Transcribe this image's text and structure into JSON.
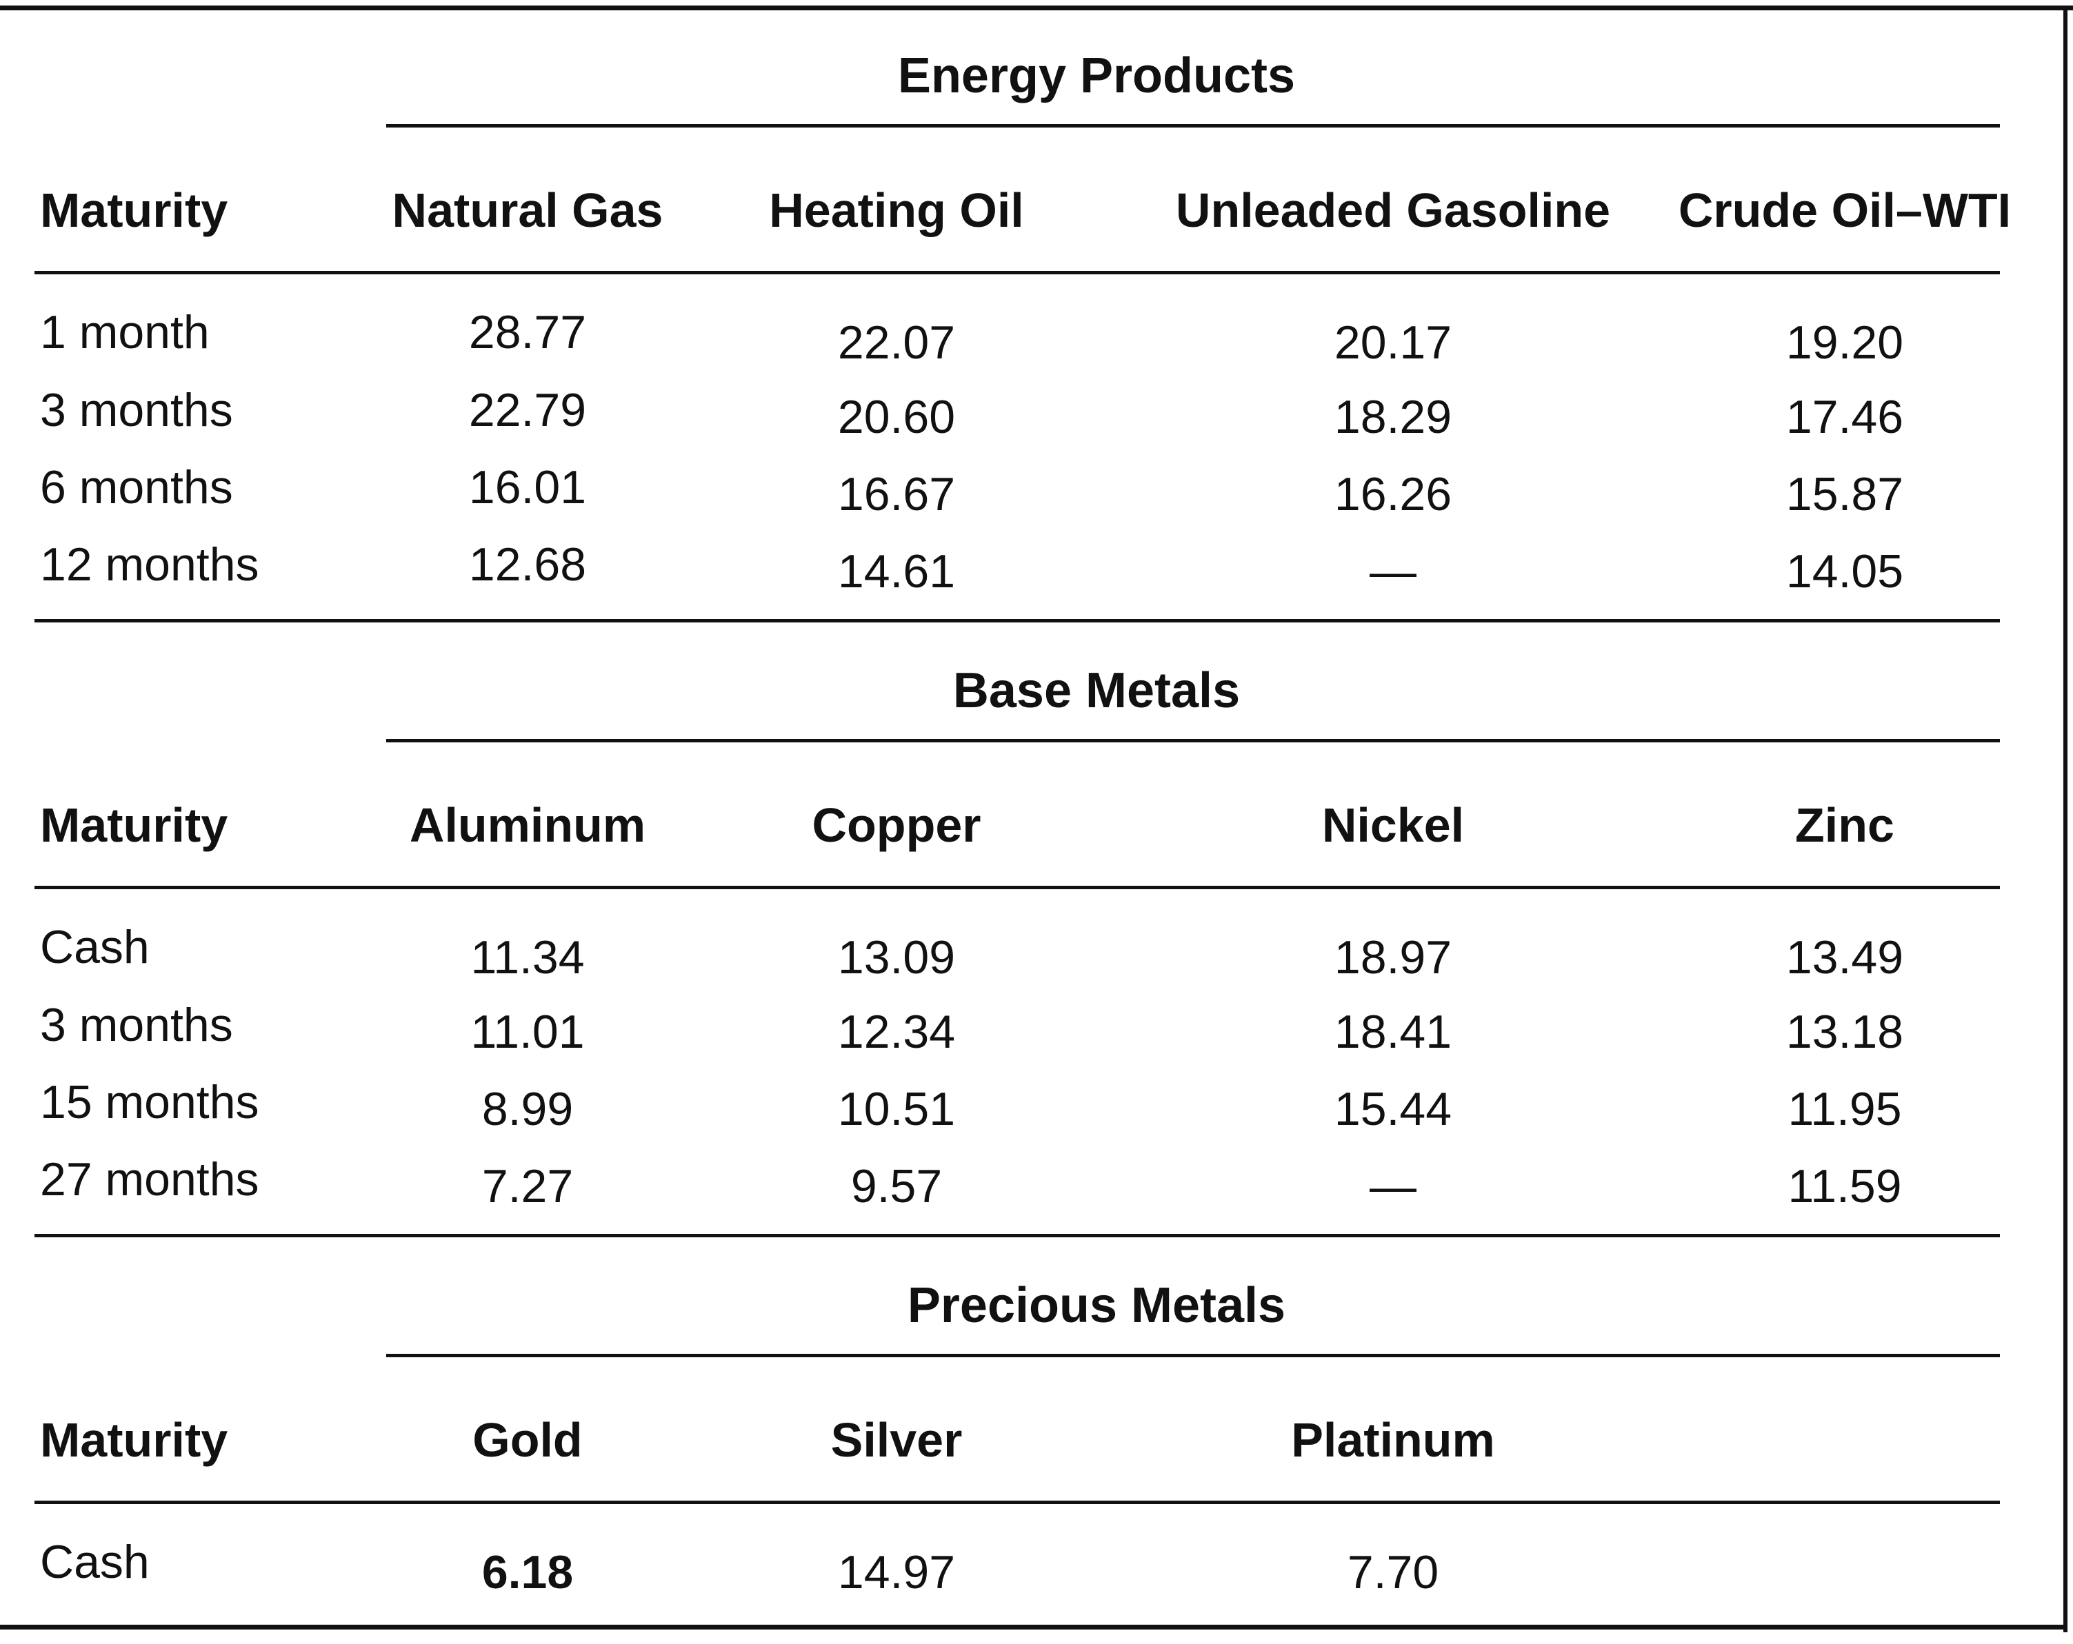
{
  "sections": [
    {
      "title": "Energy Products",
      "headers": [
        "Maturity",
        "Natural Gas",
        "Heating Oil",
        "Unleaded Gasoline",
        "Crude Oil–WTI"
      ],
      "rows": [
        [
          "1 month",
          "28.77",
          "22.07",
          "20.17",
          "19.20"
        ],
        [
          "3 months",
          "22.79",
          "20.60",
          "18.29",
          "17.46"
        ],
        [
          "6 months",
          "16.01",
          "16.67",
          "16.26",
          "15.87"
        ],
        [
          "12 months",
          "12.68",
          "14.61",
          "—",
          "14.05"
        ]
      ]
    },
    {
      "title": "Base Metals",
      "headers": [
        "Maturity",
        "Aluminum",
        "Copper",
        "Nickel",
        "Zinc"
      ],
      "rows": [
        [
          "Cash",
          "11.34",
          "13.09",
          "18.97",
          "13.49"
        ],
        [
          "3 months",
          "11.01",
          "12.34",
          "18.41",
          "13.18"
        ],
        [
          "15 months",
          "8.99",
          "10.51",
          "15.44",
          "11.95"
        ],
        [
          "27 months",
          "7.27",
          "9.57",
          "—",
          "11.59"
        ]
      ]
    },
    {
      "title": "Precious Metals",
      "headers": [
        "Maturity",
        "Gold",
        "Silver",
        "Platinum"
      ],
      "rows": [
        [
          "Cash",
          "6.18",
          "14.97",
          "7.70"
        ]
      ]
    }
  ]
}
